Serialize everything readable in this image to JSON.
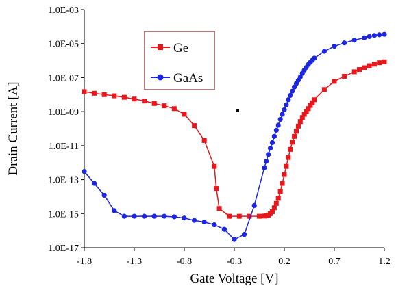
{
  "chart_data": {
    "type": "line",
    "xlabel": "Gate Voltage [V]",
    "ylabel": "Drain Current [A]",
    "xlim": [
      -1.8,
      1.2
    ],
    "ylim_log10": [
      -17,
      -3
    ],
    "yscale": "log",
    "grid": false,
    "legend_placement": "upper-left",
    "x_ticks": [
      "-1.8",
      "-1.3",
      "-0.8",
      "-0.3",
      "0.2",
      "0.7",
      "1.2"
    ],
    "y_ticks": [
      "1.0E-03",
      "1.0E-05",
      "1.0E-07",
      "1.0E-09",
      "1.0E-11",
      "1.0E-13",
      "1.0E-15",
      "1.0E-17"
    ],
    "series": [
      {
        "name": "Ge",
        "color": "#e8171b",
        "marker": "square",
        "points": [
          [
            -1.8,
            1.5e-08
          ],
          [
            -1.7,
            1.2e-08
          ],
          [
            -1.6,
            1e-08
          ],
          [
            -1.5,
            8.5e-09
          ],
          [
            -1.4,
            7e-09
          ],
          [
            -1.3,
            5.5e-09
          ],
          [
            -1.2,
            4.2e-09
          ],
          [
            -1.1,
            3e-09
          ],
          [
            -1.0,
            2.2e-09
          ],
          [
            -0.9,
            1.5e-09
          ],
          [
            -0.8,
            7e-10
          ],
          [
            -0.7,
            1.5e-10
          ],
          [
            -0.6,
            2e-11
          ],
          [
            -0.5,
            6e-13
          ],
          [
            -0.48,
            3e-14
          ],
          [
            -0.45,
            2e-15
          ],
          [
            -0.35,
            7e-16
          ],
          [
            -0.25,
            7e-16
          ],
          [
            -0.15,
            7e-16
          ],
          [
            -0.05,
            7e-16
          ],
          [
            0.0,
            7.2e-16
          ],
          [
            0.02,
            7.6e-16
          ],
          [
            0.04,
            8.2e-16
          ],
          [
            0.06,
            1e-15
          ],
          [
            0.08,
            1.3e-15
          ],
          [
            0.1,
            2.2e-15
          ],
          [
            0.12,
            4e-15
          ],
          [
            0.14,
            8e-15
          ],
          [
            0.16,
            2e-14
          ],
          [
            0.18,
            6e-14
          ],
          [
            0.2,
            2e-13
          ],
          [
            0.22,
            6e-13
          ],
          [
            0.24,
            2e-12
          ],
          [
            0.26,
            6e-12
          ],
          [
            0.28,
            1.6e-11
          ],
          [
            0.3,
            3.5e-11
          ],
          [
            0.32,
            7e-11
          ],
          [
            0.34,
            1.4e-10
          ],
          [
            0.36,
            2.6e-10
          ],
          [
            0.38,
            4.5e-10
          ],
          [
            0.4,
            7e-10
          ],
          [
            0.42,
            1e-09
          ],
          [
            0.44,
            1.5e-09
          ],
          [
            0.46,
            2.3e-09
          ],
          [
            0.48,
            3.3e-09
          ],
          [
            0.5,
            5e-09
          ],
          [
            0.6,
            2e-08
          ],
          [
            0.7,
            6e-08
          ],
          [
            0.8,
            1.2e-07
          ],
          [
            0.9,
            2.2e-07
          ],
          [
            0.95,
            3e-07
          ],
          [
            1.0,
            3.8e-07
          ],
          [
            1.05,
            5e-07
          ],
          [
            1.1,
            6.2e-07
          ],
          [
            1.15,
            7.5e-07
          ],
          [
            1.2,
            8.5e-07
          ]
        ]
      },
      {
        "name": "GaAs",
        "color": "#1c26e0",
        "marker": "circle",
        "points": [
          [
            -1.8,
            3e-13
          ],
          [
            -1.7,
            6e-14
          ],
          [
            -1.6,
            1.2e-14
          ],
          [
            -1.5,
            1.5e-15
          ],
          [
            -1.4,
            7e-16
          ],
          [
            -1.3,
            7e-16
          ],
          [
            -1.2,
            7e-16
          ],
          [
            -1.1,
            7e-16
          ],
          [
            -1.0,
            7e-16
          ],
          [
            -0.9,
            6.5e-16
          ],
          [
            -0.8,
            5.5e-16
          ],
          [
            -0.7,
            4e-16
          ],
          [
            -0.6,
            3.2e-16
          ],
          [
            -0.5,
            2.2e-16
          ],
          [
            -0.4,
            1.2e-16
          ],
          [
            -0.3,
            3e-17
          ],
          [
            -0.2,
            6e-17
          ],
          [
            -0.1,
            3e-15
          ],
          [
            0.0,
            5e-13
          ],
          [
            0.02,
            1.2e-12
          ],
          [
            0.04,
            3e-12
          ],
          [
            0.06,
            7e-12
          ],
          [
            0.08,
            1.5e-11
          ],
          [
            0.1,
            3.5e-11
          ],
          [
            0.12,
            8e-11
          ],
          [
            0.14,
            1.6e-10
          ],
          [
            0.16,
            3.5e-10
          ],
          [
            0.18,
            7e-10
          ],
          [
            0.2,
            1.3e-09
          ],
          [
            0.22,
            2.5e-09
          ],
          [
            0.24,
            5e-09
          ],
          [
            0.26,
            9e-09
          ],
          [
            0.28,
            1.6e-08
          ],
          [
            0.3,
            2.8e-08
          ],
          [
            0.32,
            4.5e-08
          ],
          [
            0.34,
            7e-08
          ],
          [
            0.36,
            1.1e-07
          ],
          [
            0.38,
            1.8e-07
          ],
          [
            0.4,
            2.8e-07
          ],
          [
            0.42,
            4e-07
          ],
          [
            0.44,
            6e-07
          ],
          [
            0.46,
            8e-07
          ],
          [
            0.48,
            1.05e-06
          ],
          [
            0.5,
            1.4e-06
          ],
          [
            0.6,
            3.5e-06
          ],
          [
            0.7,
            7e-06
          ],
          [
            0.8,
            1.1e-05
          ],
          [
            0.9,
            1.6e-05
          ],
          [
            1.0,
            2.2e-05
          ],
          [
            1.05,
            2.6e-05
          ],
          [
            1.1,
            3e-05
          ],
          [
            1.15,
            3.3e-05
          ],
          [
            1.2,
            3.5e-05
          ]
        ]
      }
    ]
  }
}
